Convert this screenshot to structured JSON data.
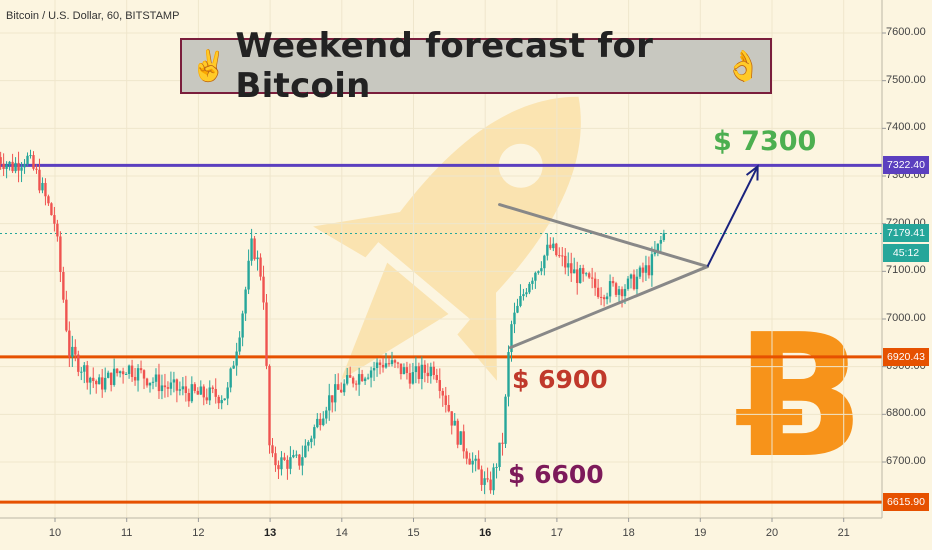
{
  "header": {
    "symbol": "Bitcoin / U.S. Dollar, 60, BITSTAMP"
  },
  "title": {
    "text": "Weekend forecast for Bitcoin",
    "icon_left": "victory-hand-icon",
    "icon_right": "ok-hand-icon"
  },
  "annotations": {
    "target": "$ 7300",
    "support": "$ 6900",
    "low": "$ 6600"
  },
  "price_labels": {
    "resistance": "7322.40",
    "current": "7179.41",
    "countdown": "45:12",
    "support": "6920.43",
    "bottom": "6615.90"
  },
  "colors": {
    "background": "#fcf5e0",
    "up": "#26a69a",
    "down": "#ef5350",
    "resistance": "#5b3fbf",
    "support": "#e65100",
    "current": "#26a69a",
    "triangle": "#888888",
    "arrow": "#1a237e",
    "bitcoin": "#f7931a",
    "rocket": "#f9d58a"
  },
  "chart_data": {
    "type": "candlestick",
    "y_axis": {
      "ticks": [
        "7600.00",
        "7500.00",
        "7400.00",
        "7300.00",
        "7200.00",
        "7100.00",
        "7000.00",
        "6900.00",
        "6800.00",
        "6700.00"
      ],
      "range": [
        6580,
        7660
      ]
    },
    "x_axis": {
      "ticks": [
        "10",
        "11",
        "12",
        "13",
        "14",
        "15",
        "16",
        "17",
        "18",
        "19",
        "20",
        "21"
      ],
      "bold_ticks": [
        "13",
        "16"
      ]
    },
    "horizontal_levels": [
      {
        "price": 7322.4,
        "style": "resistance"
      },
      {
        "price": 6920.43,
        "style": "support"
      },
      {
        "price": 6615.9,
        "style": "support"
      },
      {
        "price": 7179.41,
        "style": "current-dotted"
      }
    ],
    "price_waypoints": [
      {
        "day": 9.2,
        "price": 7340
      },
      {
        "day": 9.4,
        "price": 7320
      },
      {
        "day": 9.6,
        "price": 7340
      },
      {
        "day": 9.75,
        "price": 7300
      },
      {
        "day": 10.0,
        "price": 7200
      },
      {
        "day": 10.2,
        "price": 6930
      },
      {
        "day": 10.6,
        "price": 6860
      },
      {
        "day": 11.0,
        "price": 6900
      },
      {
        "day": 11.5,
        "price": 6860
      },
      {
        "day": 12.0,
        "price": 6840
      },
      {
        "day": 12.4,
        "price": 6840
      },
      {
        "day": 12.6,
        "price": 7000
      },
      {
        "day": 12.75,
        "price": 7160
      },
      {
        "day": 12.9,
        "price": 7080
      },
      {
        "day": 13.0,
        "price": 6700
      },
      {
        "day": 13.4,
        "price": 6700
      },
      {
        "day": 13.8,
        "price": 6830
      },
      {
        "day": 14.2,
        "price": 6880
      },
      {
        "day": 14.6,
        "price": 6910
      },
      {
        "day": 15.0,
        "price": 6880
      },
      {
        "day": 15.3,
        "price": 6900
      },
      {
        "day": 15.6,
        "price": 6760
      },
      {
        "day": 15.9,
        "price": 6680
      },
      {
        "day": 16.05,
        "price": 6640
      },
      {
        "day": 16.25,
        "price": 6750
      },
      {
        "day": 16.35,
        "price": 6980
      },
      {
        "day": 16.6,
        "price": 7080
      },
      {
        "day": 16.9,
        "price": 7150
      },
      {
        "day": 17.2,
        "price": 7100
      },
      {
        "day": 17.6,
        "price": 7060
      },
      {
        "day": 18.0,
        "price": 7070
      },
      {
        "day": 18.3,
        "price": 7110
      },
      {
        "day": 18.5,
        "price": 7180
      }
    ],
    "forecast": {
      "triangle_upper": [
        [
          16.2,
          7240
        ],
        [
          19.1,
          7110
        ]
      ],
      "triangle_lower": [
        [
          16.35,
          6940
        ],
        [
          19.1,
          7110
        ]
      ],
      "projection": [
        [
          19.1,
          7110
        ],
        [
          19.8,
          7320
        ]
      ]
    }
  }
}
